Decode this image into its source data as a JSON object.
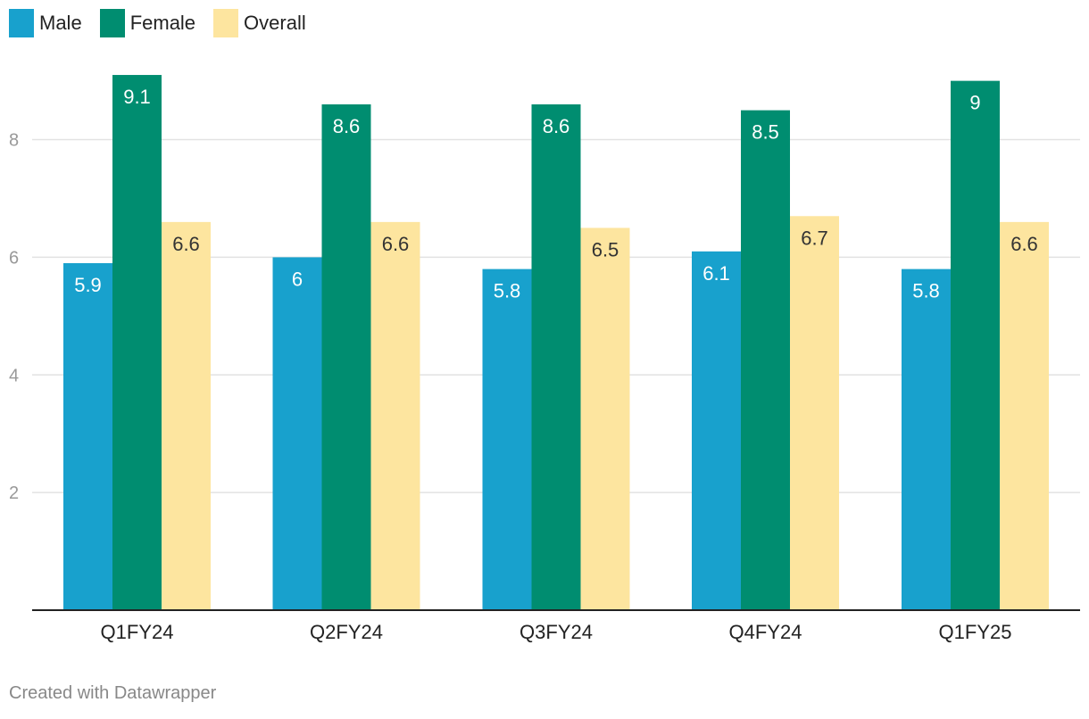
{
  "legend": [
    {
      "label": "Male",
      "color": "#18a1cd"
    },
    {
      "label": "Female",
      "color": "#008d70"
    },
    {
      "label": "Overall",
      "color": "#fde59f"
    }
  ],
  "chart_data": {
    "type": "bar",
    "title": "",
    "xlabel": "",
    "ylabel": "",
    "categories": [
      "Q1FY24",
      "Q2FY24",
      "Q3FY24",
      "Q4FY24",
      "Q1FY25"
    ],
    "series": [
      {
        "name": "Male",
        "values": [
          5.9,
          6,
          5.8,
          6.1,
          5.8
        ]
      },
      {
        "name": "Female",
        "values": [
          9.1,
          8.6,
          8.6,
          8.5,
          9
        ]
      },
      {
        "name": "Overall",
        "values": [
          6.6,
          6.6,
          6.5,
          6.7,
          6.6
        ]
      }
    ],
    "ylim": [
      0,
      9.1
    ],
    "yticks": [
      2,
      4,
      6,
      8
    ],
    "grid": true,
    "legend_position": "top-left"
  },
  "footer": {
    "credit": "Created with Datawrapper"
  }
}
